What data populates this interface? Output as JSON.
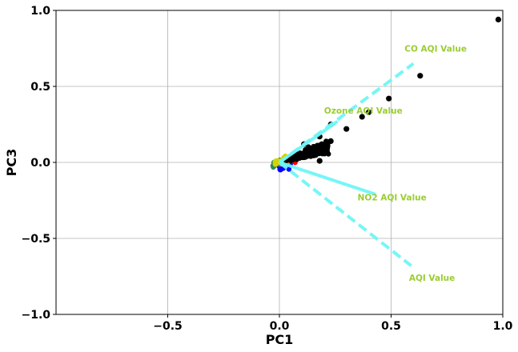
{
  "chart_data": {
    "type": "scatter",
    "xlabel": "PC1",
    "ylabel": "PC3",
    "xlim": [
      -1.0,
      1.0
    ],
    "ylim": [
      -1.0,
      1.0
    ],
    "grid": true,
    "x_ticks": [
      {
        "value": -0.5,
        "label": "−0.5"
      },
      {
        "value": 0.0,
        "label": "0.0"
      },
      {
        "value": 0.5,
        "label": "0.5"
      },
      {
        "value": 1.0,
        "label": "1.0"
      }
    ],
    "y_ticks": [
      {
        "value": -1.0,
        "label": "−1.0"
      },
      {
        "value": -0.5,
        "label": "−0.5"
      },
      {
        "value": 0.0,
        "label": "0.0"
      },
      {
        "value": 0.5,
        "label": "0.5"
      },
      {
        "value": 1.0,
        "label": "1.0"
      }
    ],
    "outlier_points": [
      {
        "x": 0.98,
        "y": 0.94
      },
      {
        "x": 0.63,
        "y": 0.57
      },
      {
        "x": 0.49,
        "y": 0.42
      },
      {
        "x": 0.4,
        "y": 0.33
      },
      {
        "x": 0.37,
        "y": 0.3
      },
      {
        "x": 0.3,
        "y": 0.22
      },
      {
        "x": 0.23,
        "y": 0.25
      },
      {
        "x": 0.18,
        "y": 0.17
      },
      {
        "x": 0.23,
        "y": 0.14
      },
      {
        "x": 0.21,
        "y": 0.13
      },
      {
        "x": 0.19,
        "y": 0.12
      },
      {
        "x": 0.17,
        "y": 0.11
      },
      {
        "x": 0.11,
        "y": 0.12
      },
      {
        "x": 0.13,
        "y": 0.1
      },
      {
        "x": 0.18,
        "y": 0.01
      }
    ],
    "dense_cluster": {
      "x_range": [
        0.0,
        0.22
      ],
      "slope_range": [
        0.3,
        0.65
      ],
      "color": "#000000"
    },
    "colored_cluster": [
      {
        "color": "#ff0000",
        "x_range": [
          0.0,
          0.08
        ],
        "offset": -0.02
      },
      {
        "color": "#0000ff",
        "x_range": [
          0.0,
          0.05
        ],
        "offset": -0.04
      },
      {
        "color": "#ff8c00",
        "x_range": [
          0.0,
          0.04
        ],
        "offset": 0.0
      },
      {
        "color": "#2e8b57",
        "x_range": [
          -0.03,
          0.02
        ],
        "offset": 0.0
      },
      {
        "color": "#d4d400",
        "x_range": [
          -0.02,
          0.03
        ],
        "offset": 0.01
      }
    ],
    "loadings": [
      {
        "name": "CO AQI Value",
        "x": 0.6,
        "y": 0.65,
        "style": "dashed",
        "label_x": 0.56,
        "label_y": 0.73
      },
      {
        "name": "Ozone AQI Value",
        "x": 0.26,
        "y": 0.27,
        "style": "solid",
        "label_x": 0.2,
        "label_y": 0.32
      },
      {
        "name": "NO2 AQI Value",
        "x": 0.43,
        "y": -0.21,
        "style": "solid",
        "label_x": 0.35,
        "label_y": -0.25
      },
      {
        "name": "AQI Value",
        "x": 0.59,
        "y": -0.68,
        "style": "dashed",
        "label_x": 0.58,
        "label_y": -0.78
      }
    ],
    "loading_color": "#6ff6f6",
    "loading_label_color": "#9acd32",
    "point_color": "#000000",
    "grid_color": "#b0b0b0"
  }
}
